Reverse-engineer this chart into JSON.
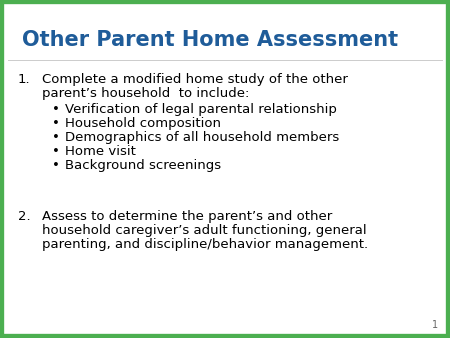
{
  "title": "Other Parent Home Assessment",
  "title_color": "#1F5C99",
  "background_color": "#FFFFFF",
  "border_color": "#4CAF50",
  "border_width": 6,
  "item1_line1": "Complete a modified home study of the other",
  "item1_line2": "parent’s household  to include:",
  "bullets": [
    "Verification of legal parental relationship",
    "Household composition",
    "Demographics of all household members",
    "Home visit",
    "Background screenings"
  ],
  "item2_line1": "Assess to determine the parent’s and other",
  "item2_line2": "household caregiver’s adult functioning, general",
  "item2_line3": "parenting, and discipline/behavior management.",
  "body_color": "#000000",
  "page_number": "1",
  "font_size_title": 15,
  "font_size_body": 9.5
}
